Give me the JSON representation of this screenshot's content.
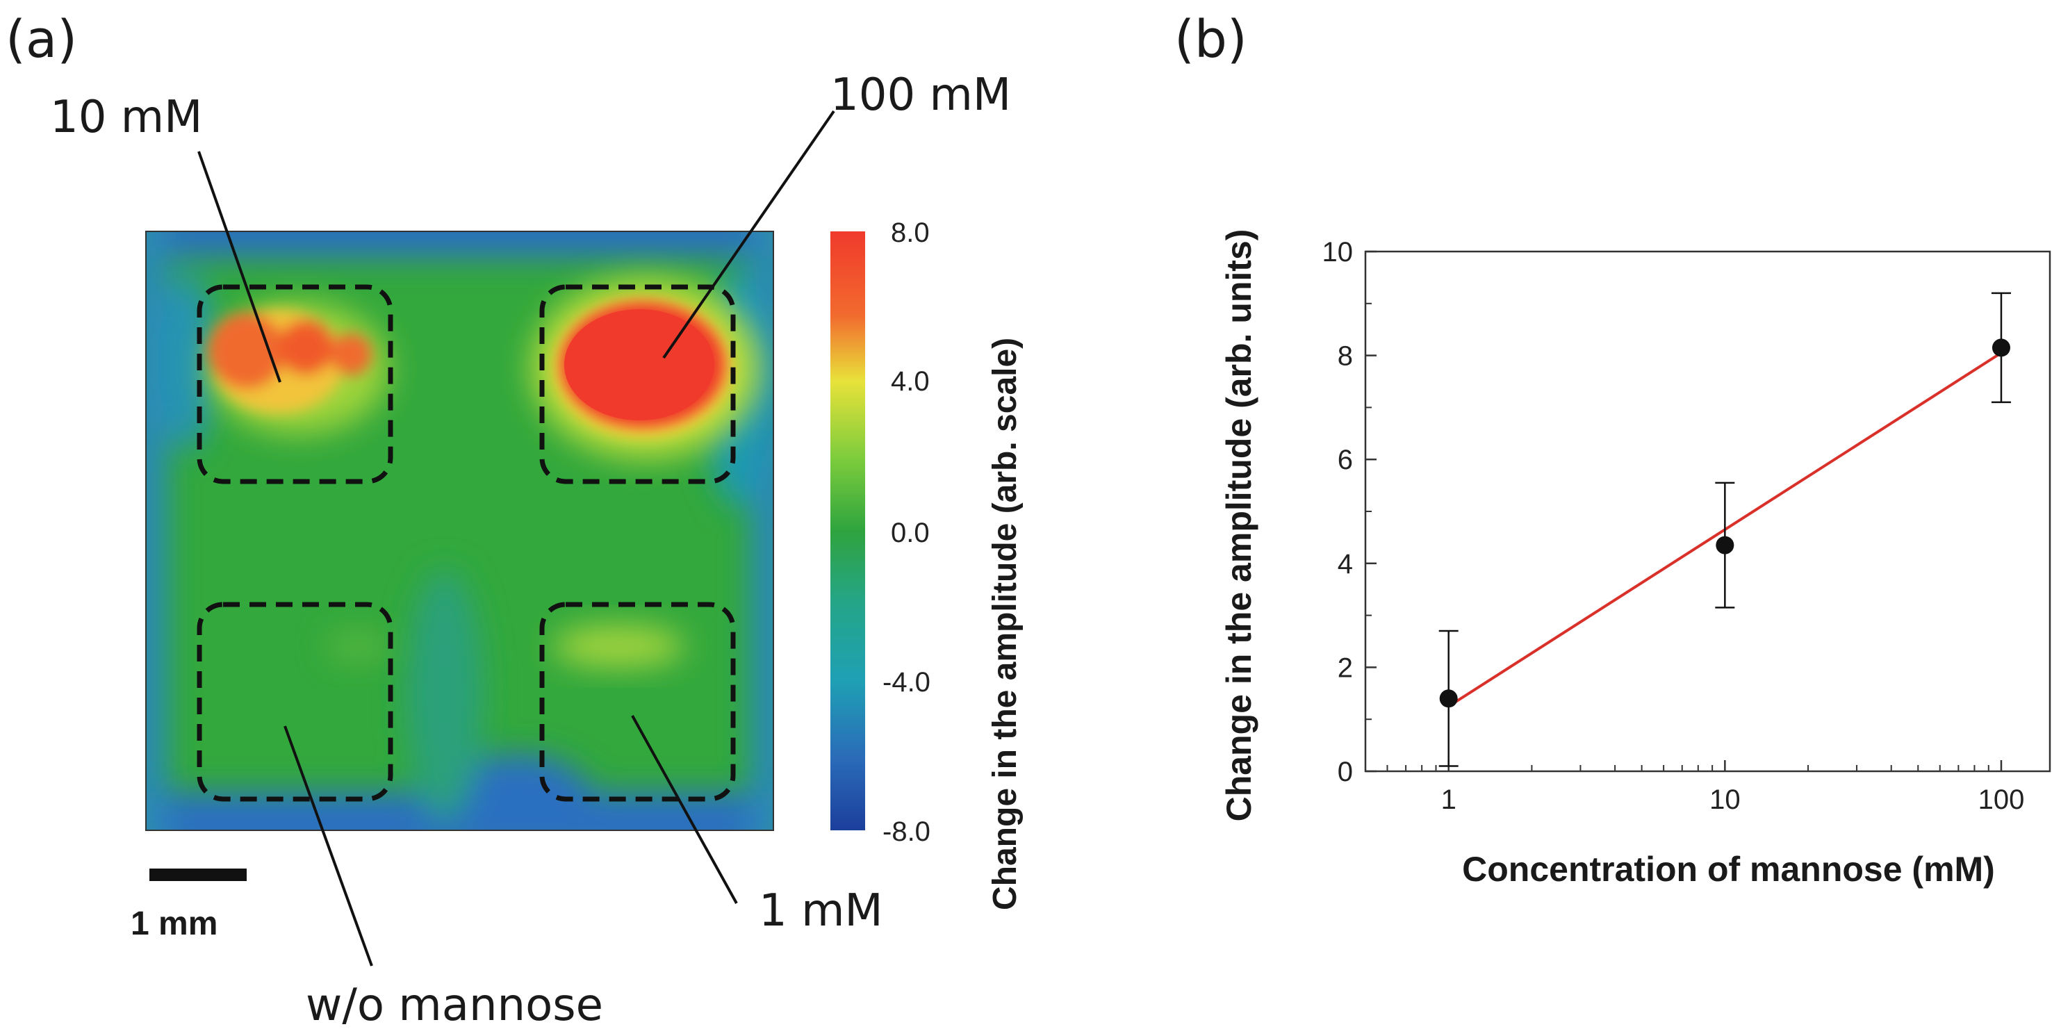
{
  "panel_a": {
    "letter": "(a)",
    "region_labels": {
      "top_left": "10 mM",
      "top_right": "100 mM",
      "bottom_left": "w/o mannose",
      "bottom_right": "1 mM"
    },
    "scale_bar_label": "1 mm",
    "colorbar": {
      "label": "Change in the amplitude (arb. scale)",
      "ticks": [
        "8.0",
        "4.0",
        "0.0",
        "-4.0",
        "-8.0"
      ],
      "colors": [
        "#f03a2c",
        "#e2e23a",
        "#2fa43e",
        "#1fa0b4",
        "#1c3f9c"
      ]
    }
  },
  "panel_b": {
    "letter": "(b)"
  },
  "chart_data": {
    "type": "scatter",
    "title": "",
    "xlabel": "Concentration of mannose (mM)",
    "ylabel": "Change in the amplitude (arb. units)",
    "xscale": "log",
    "xlim": [
      0.5,
      150
    ],
    "ylim": [
      0,
      10
    ],
    "xticks": [
      1,
      10,
      100
    ],
    "xtick_labels": [
      "1",
      "10",
      "100"
    ],
    "yticks": [
      0,
      2,
      4,
      6,
      8,
      10
    ],
    "ytick_labels": [
      "0",
      "2",
      "4",
      "6",
      "8",
      "10"
    ],
    "points": [
      {
        "x": 1,
        "y": 1.4,
        "err": 1.3
      },
      {
        "x": 10,
        "y": 4.35,
        "err": 1.2
      },
      {
        "x": 100,
        "y": 8.15,
        "err": 1.05
      }
    ],
    "fit_line": {
      "x": [
        1,
        100
      ],
      "y": [
        1.25,
        8.05
      ],
      "color": "#d9302a"
    },
    "marker_color": "#111111"
  }
}
